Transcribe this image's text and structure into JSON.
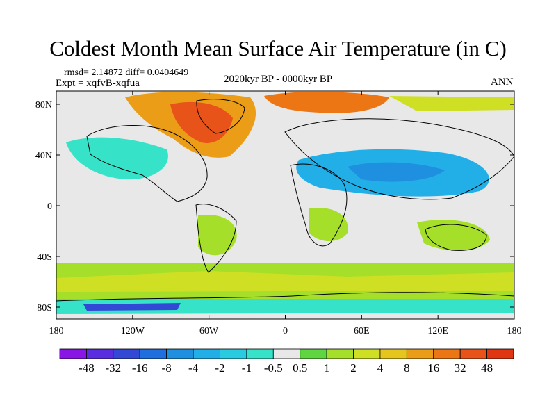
{
  "title": "Coldest Month Mean Surface Air Temperature (in C)",
  "stats": "rmsd= 2.14872 diff= 0.0404649",
  "experiment": "Expt = xqfvB-xqfua",
  "period": "2020kyr BP - 0000kyr BP",
  "season": "ANN",
  "lat_ticks": [
    "80N",
    "40N",
    "0",
    "40S",
    "80S"
  ],
  "lon_ticks": [
    "180",
    "120W",
    "60W",
    "0",
    "60E",
    "120E",
    "180"
  ],
  "colorbar": {
    "labels": [
      "-48",
      "-32",
      "-16",
      "-8",
      "-4",
      "-2",
      "-1",
      "-0.5",
      "0.5",
      "1",
      "2",
      "4",
      "8",
      "16",
      "32",
      "48"
    ],
    "colors": [
      "#8a16e6",
      "#5a2ee0",
      "#3349d6",
      "#1f6fde",
      "#1f8fe0",
      "#22aee6",
      "#29cbe0",
      "#36e3c8",
      "#e8e8e8",
      "#5fd640",
      "#a6df2a",
      "#cfe024",
      "#e6c61c",
      "#ec9d17",
      "#ec7514",
      "#e8531a",
      "#df3510"
    ]
  }
}
